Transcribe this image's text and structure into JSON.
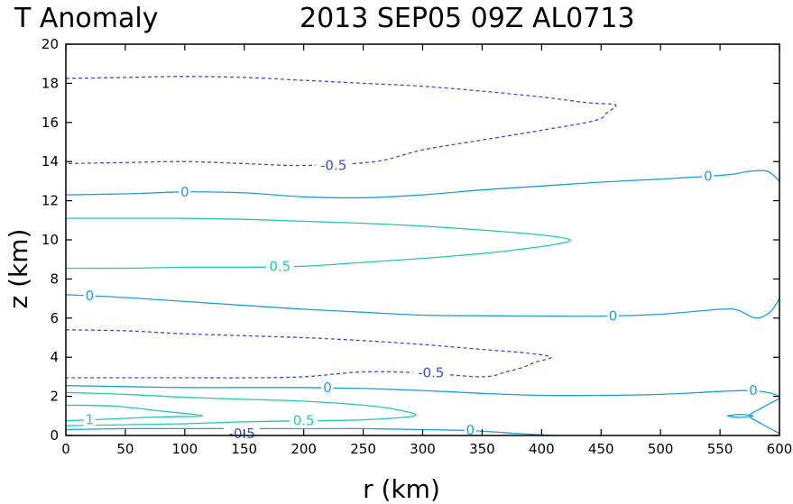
{
  "chart_data": {
    "type": "contour",
    "title_left": "T Anomaly",
    "title_right": "2013 SEP05 09Z   AL0713",
    "xlabel": "r (km)",
    "ylabel": "z (km)",
    "xlim": [
      0,
      600
    ],
    "ylim": [
      0,
      20
    ],
    "xticks": [
      0,
      50,
      100,
      150,
      200,
      250,
      300,
      350,
      400,
      450,
      500,
      550,
      600
    ],
    "yticks": [
      0,
      2,
      4,
      6,
      8,
      10,
      12,
      14,
      16,
      18,
      20
    ],
    "colors": {
      "neg": "#3a50d8",
      "zero": "#1e9ee0",
      "pos": "#22c8b0"
    },
    "contours": [
      {
        "level": -0.5,
        "kind": "neg",
        "dashed": true,
        "points": [
          [
            0,
            18.25
          ],
          [
            50,
            18.3
          ],
          [
            100,
            18.35
          ],
          [
            150,
            18.3
          ],
          [
            200,
            18.15
          ],
          [
            250,
            18.0
          ],
          [
            300,
            17.85
          ],
          [
            350,
            17.6
          ],
          [
            400,
            17.3
          ],
          [
            440,
            17.0
          ],
          [
            462,
            16.9
          ],
          [
            455,
            16.5
          ],
          [
            445,
            16.1
          ],
          [
            400,
            15.6
          ],
          [
            350,
            15.1
          ],
          [
            300,
            14.6
          ],
          [
            260,
            14.0
          ],
          [
            200,
            13.8
          ],
          [
            150,
            13.9
          ],
          [
            100,
            14.0
          ],
          [
            50,
            13.95
          ],
          [
            0,
            13.9
          ]
        ]
      },
      {
        "level": -0.5,
        "kind": "neg",
        "dashed": true,
        "points": [
          [
            0,
            5.4
          ],
          [
            50,
            5.35
          ],
          [
            100,
            5.2
          ],
          [
            150,
            5.1
          ],
          [
            200,
            5.0
          ],
          [
            250,
            4.85
          ],
          [
            300,
            4.65
          ],
          [
            350,
            4.4
          ],
          [
            390,
            4.2
          ],
          [
            408,
            4.0
          ],
          [
            395,
            3.75
          ],
          [
            385,
            3.5
          ],
          [
            370,
            3.25
          ],
          [
            350,
            3.0
          ],
          [
            300,
            3.2
          ],
          [
            250,
            3.25
          ],
          [
            200,
            3.0
          ],
          [
            150,
            2.95
          ],
          [
            100,
            2.95
          ],
          [
            50,
            2.95
          ],
          [
            0,
            2.95
          ]
        ]
      },
      {
        "level": 0,
        "kind": "zero",
        "dashed": false,
        "points": [
          [
            0,
            12.3
          ],
          [
            50,
            12.35
          ],
          [
            100,
            12.45
          ],
          [
            150,
            12.4
          ],
          [
            200,
            12.2
          ],
          [
            250,
            12.15
          ],
          [
            300,
            12.3
          ],
          [
            350,
            12.55
          ],
          [
            400,
            12.75
          ],
          [
            450,
            12.95
          ],
          [
            500,
            13.1
          ],
          [
            540,
            13.25
          ],
          [
            560,
            13.35
          ],
          [
            575,
            13.5
          ],
          [
            590,
            13.5
          ],
          [
            600,
            13.0
          ]
        ]
      },
      {
        "level": 0,
        "kind": "zero",
        "dashed": false,
        "points": [
          [
            0,
            7.2
          ],
          [
            50,
            7.05
          ],
          [
            100,
            6.85
          ],
          [
            150,
            6.65
          ],
          [
            200,
            6.45
          ],
          [
            250,
            6.3
          ],
          [
            300,
            6.15
          ],
          [
            350,
            6.12
          ],
          [
            400,
            6.1
          ],
          [
            450,
            6.1
          ],
          [
            500,
            6.2
          ],
          [
            550,
            6.45
          ],
          [
            565,
            6.4
          ],
          [
            580,
            6.0
          ],
          [
            592,
            6.3
          ],
          [
            600,
            7.0
          ]
        ]
      },
      {
        "level": 0,
        "kind": "zero",
        "dashed": false,
        "points": [
          [
            0,
            2.55
          ],
          [
            50,
            2.5
          ],
          [
            100,
            2.45
          ],
          [
            150,
            2.45
          ],
          [
            200,
            2.45
          ],
          [
            250,
            2.4
          ],
          [
            300,
            2.3
          ],
          [
            350,
            2.15
          ],
          [
            400,
            2.05
          ],
          [
            450,
            2.05
          ],
          [
            500,
            2.1
          ],
          [
            550,
            2.25
          ],
          [
            575,
            2.3
          ],
          [
            590,
            2.2
          ],
          [
            600,
            2.0
          ]
        ]
      },
      {
        "level": 0,
        "kind": "zero",
        "dashed": false,
        "points": [
          [
            0,
            0.3
          ],
          [
            50,
            0.35
          ],
          [
            100,
            0.35
          ],
          [
            150,
            0.35
          ],
          [
            200,
            0.35
          ],
          [
            250,
            0.35
          ],
          [
            300,
            0.3
          ],
          [
            340,
            0.25
          ],
          [
            380,
            0.1
          ],
          [
            410,
            0.0
          ]
        ]
      },
      {
        "level": 0,
        "kind": "zero",
        "dashed": false,
        "points": [
          [
            600,
            1.9
          ],
          [
            585,
            1.4
          ],
          [
            575,
            1.0
          ],
          [
            585,
            0.6
          ],
          [
            600,
            0.1
          ]
        ]
      },
      {
        "level": 0,
        "kind": "zero",
        "dashed": false,
        "points": [
          [
            556,
            1.0
          ],
          [
            566,
            1.08
          ],
          [
            578,
            1.0
          ],
          [
            566,
            0.92
          ],
          [
            556,
            1.0
          ]
        ]
      },
      {
        "level": 0.5,
        "kind": "pos",
        "dashed": false,
        "points": [
          [
            0,
            11.1
          ],
          [
            50,
            11.1
          ],
          [
            100,
            11.1
          ],
          [
            150,
            11.05
          ],
          [
            200,
            10.95
          ],
          [
            250,
            10.85
          ],
          [
            300,
            10.7
          ],
          [
            350,
            10.5
          ],
          [
            400,
            10.25
          ],
          [
            424,
            10.0
          ],
          [
            410,
            9.75
          ],
          [
            380,
            9.5
          ],
          [
            350,
            9.3
          ],
          [
            300,
            9.05
          ],
          [
            250,
            8.85
          ],
          [
            200,
            8.65
          ],
          [
            150,
            8.6
          ],
          [
            100,
            8.6
          ],
          [
            50,
            8.55
          ],
          [
            0,
            8.55
          ]
        ]
      },
      {
        "level": 0.5,
        "kind": "pos",
        "dashed": false,
        "points": [
          [
            0,
            2.2
          ],
          [
            50,
            2.1
          ],
          [
            100,
            1.95
          ],
          [
            150,
            1.85
          ],
          [
            200,
            1.75
          ],
          [
            250,
            1.55
          ],
          [
            280,
            1.3
          ],
          [
            293,
            1.0
          ],
          [
            250,
            0.8
          ],
          [
            200,
            0.75
          ],
          [
            150,
            0.7
          ],
          [
            100,
            0.6
          ],
          [
            50,
            0.55
          ],
          [
            0,
            0.5
          ]
        ]
      },
      {
        "level": 1,
        "kind": "pos",
        "dashed": false,
        "points": [
          [
            0,
            1.55
          ],
          [
            40,
            1.5
          ],
          [
            80,
            1.25
          ],
          [
            115,
            1.0
          ],
          [
            80,
            0.95
          ],
          [
            40,
            0.85
          ],
          [
            0,
            0.75
          ]
        ]
      }
    ],
    "labels": [
      {
        "text": "-0.5",
        "x": 225,
        "y": 13.8,
        "kind": "neg"
      },
      {
        "text": "-0.5",
        "x": 307,
        "y": 3.2,
        "kind": "neg"
      },
      {
        "text": "-0.5",
        "x": 148,
        "y": 0.1,
        "kind": "neg"
      },
      {
        "text": "0",
        "x": 100,
        "y": 12.45,
        "kind": "zero"
      },
      {
        "text": "0",
        "x": 540,
        "y": 13.25,
        "kind": "zero"
      },
      {
        "text": "0",
        "x": 20,
        "y": 7.15,
        "kind": "zero"
      },
      {
        "text": "0",
        "x": 460,
        "y": 6.1,
        "kind": "zero"
      },
      {
        "text": "0",
        "x": 220,
        "y": 2.45,
        "kind": "zero"
      },
      {
        "text": "0",
        "x": 578,
        "y": 2.3,
        "kind": "zero"
      },
      {
        "text": "0",
        "x": 340,
        "y": 0.28,
        "kind": "zero"
      },
      {
        "text": "0.5",
        "x": 180,
        "y": 8.65,
        "kind": "pos"
      },
      {
        "text": "0.5",
        "x": 200,
        "y": 0.75,
        "kind": "pos"
      },
      {
        "text": "1",
        "x": 20,
        "y": 0.8,
        "kind": "pos"
      }
    ]
  }
}
